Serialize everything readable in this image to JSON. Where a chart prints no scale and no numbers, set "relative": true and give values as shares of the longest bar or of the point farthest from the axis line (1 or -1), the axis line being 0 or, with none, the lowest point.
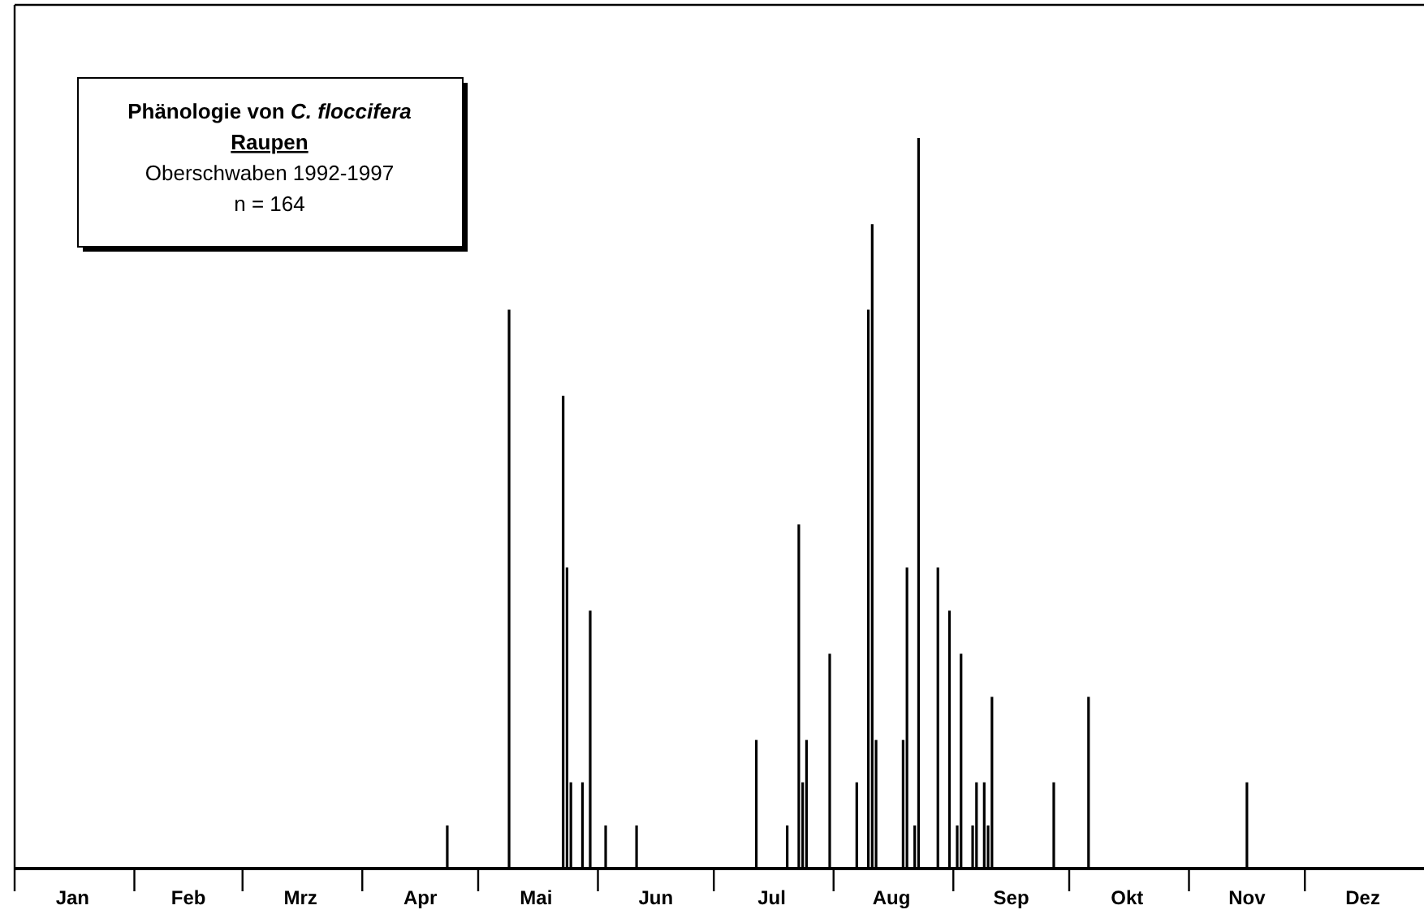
{
  "chart_data": {
    "type": "bar",
    "title": "Phänologie von C. floccifera",
    "subtitle": "Raupen",
    "annotations": [
      "Oberschwaben 1992-1997",
      "n = 164"
    ],
    "relative": true,
    "color": "#000000",
    "x": [
      "--04-23",
      "--05-09",
      "--05-23",
      "--05-24",
      "--05-25",
      "--05-28",
      "--05-30",
      "--06-03",
      "--06-11",
      "--07-12",
      "--07-20",
      "--07-23",
      "--07-24",
      "--07-25",
      "--07-31",
      "--08-07",
      "--08-10",
      "--08-11",
      "--08-12",
      "--08-19",
      "--08-20",
      "--08-22",
      "--08-23",
      "--08-28",
      "--08-31",
      "--09-02",
      "--09-03",
      "--09-06",
      "--09-07",
      "--09-09",
      "--09-10",
      "--09-11",
      "--09-27",
      "--10-06",
      "--11-16"
    ],
    "values": [
      0.059,
      0.765,
      0.647,
      0.412,
      0.118,
      0.118,
      0.353,
      0.059,
      0.059,
      0.176,
      0.059,
      0.471,
      0.118,
      0.176,
      0.294,
      0.118,
      0.765,
      0.882,
      0.176,
      0.176,
      0.412,
      0.059,
      1,
      0.412,
      0.353,
      0.059,
      0.294,
      0.059,
      0.118,
      0.118,
      0.059,
      0.235,
      0.118,
      0.235,
      0.118
    ],
    "xlim": [
      "--01-01",
      "--12-31"
    ],
    "xticks": [
      {
        "value": "--01-01",
        "label": null
      },
      {
        "value": "--01-16",
        "label": "Jan"
      },
      {
        "value": "--02-01",
        "label": null
      },
      {
        "value": "--02-15",
        "label": "Feb"
      },
      {
        "value": "--03-01",
        "label": null
      },
      {
        "value": "--03-16",
        "label": "Mrz"
      },
      {
        "value": "--04-01",
        "label": null
      },
      {
        "value": "--04-16",
        "label": "Apr"
      },
      {
        "value": "--05-01",
        "label": null
      },
      {
        "value": "--05-16",
        "label": "Mai"
      },
      {
        "value": "--06-01",
        "label": null
      },
      {
        "value": "--06-16",
        "label": "Jun"
      },
      {
        "value": "--07-01",
        "label": null
      },
      {
        "value": "--07-16",
        "label": "Jul"
      },
      {
        "value": "--08-01",
        "label": null
      },
      {
        "value": "--08-16",
        "label": "Aug"
      },
      {
        "value": "--09-01",
        "label": null
      },
      {
        "value": "--09-16",
        "label": "Sep"
      },
      {
        "value": "--10-01",
        "label": null
      },
      {
        "value": "--10-16",
        "label": "Okt"
      },
      {
        "value": "--11-01",
        "label": null
      },
      {
        "value": "--11-16",
        "label": "Nov"
      },
      {
        "value": "--12-01",
        "label": null
      },
      {
        "value": "--12-16",
        "label": "Dez"
      }
    ]
  }
}
